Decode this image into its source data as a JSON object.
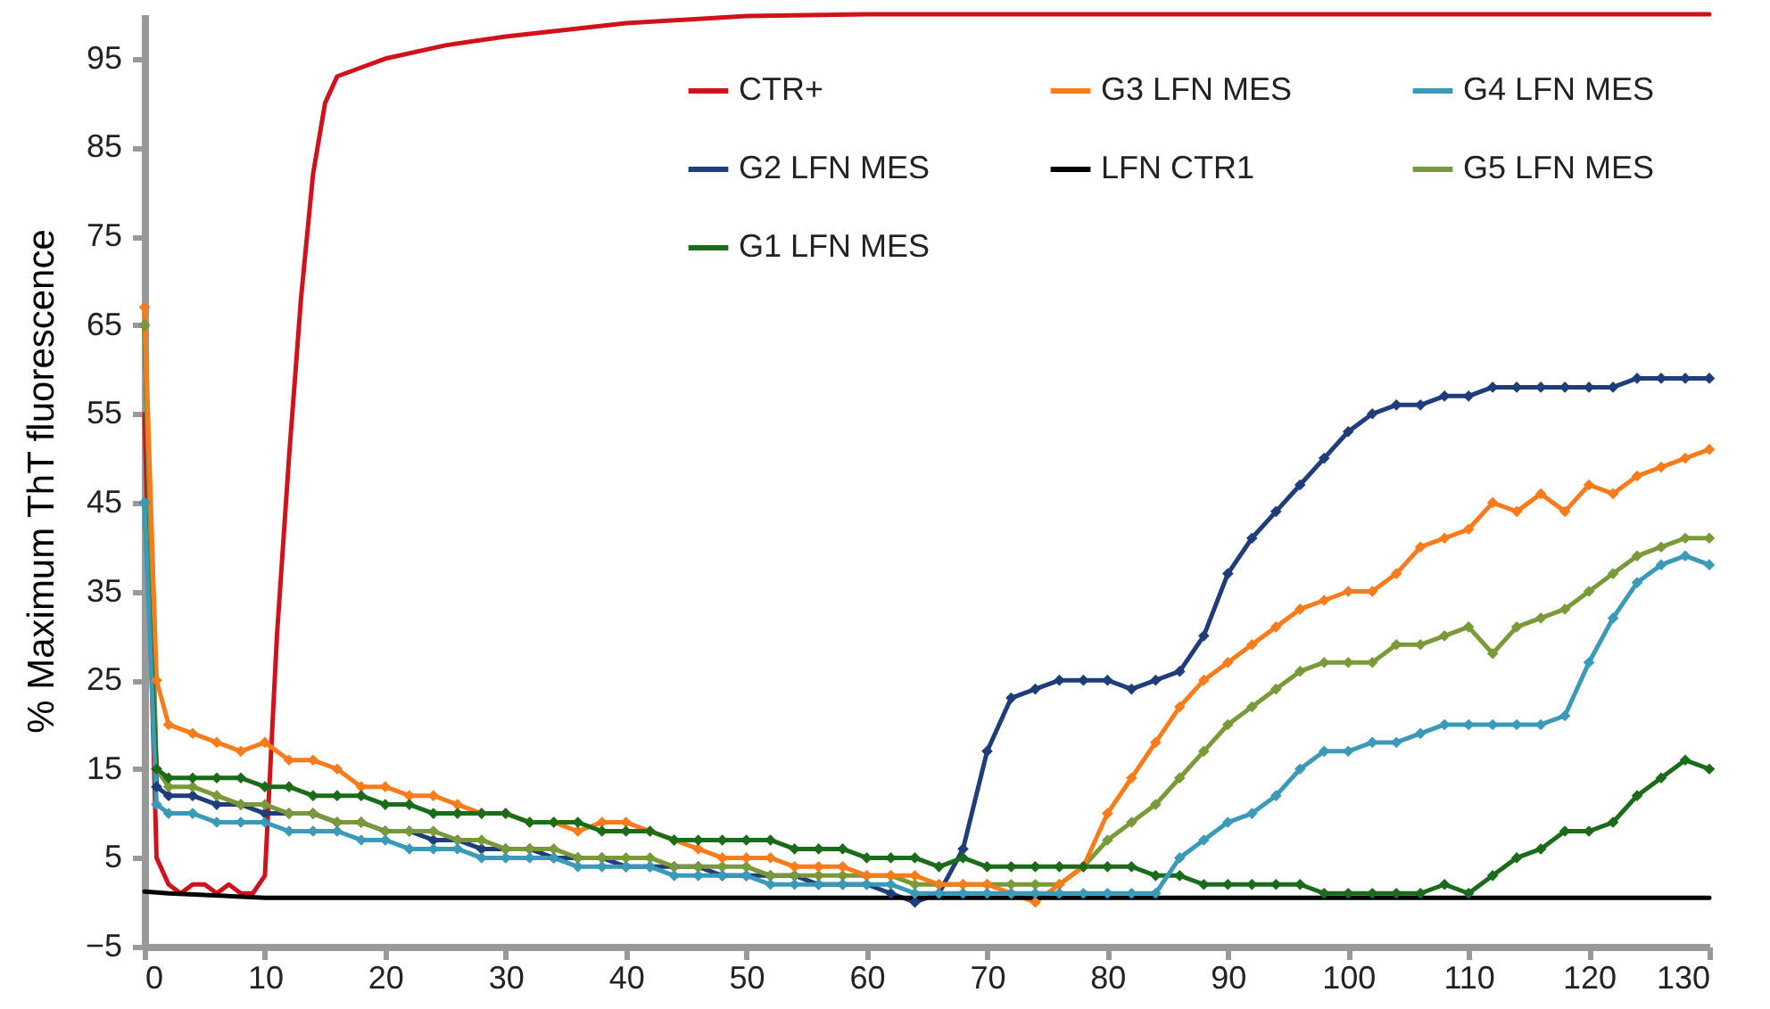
{
  "chart_data": {
    "type": "line",
    "ylabel": "% Maximum ThT fluorescence",
    "xlim": [
      0,
      130
    ],
    "xticks": [
      0,
      10,
      20,
      30,
      40,
      50,
      60,
      70,
      80,
      90,
      100,
      110,
      120,
      130
    ],
    "ylim": [
      -5,
      100
    ],
    "yticks": [
      -5,
      5,
      15,
      25,
      35,
      45,
      55,
      65,
      75,
      85,
      95
    ],
    "grid": false,
    "legend": "top right",
    "x": [
      0,
      1,
      2,
      4,
      6,
      8,
      10,
      12,
      14,
      16,
      18,
      20,
      22,
      24,
      26,
      28,
      30,
      32,
      34,
      36,
      38,
      40,
      42,
      44,
      46,
      48,
      50,
      52,
      54,
      56,
      58,
      60,
      62,
      64,
      66,
      68,
      70,
      72,
      74,
      76,
      78,
      80,
      82,
      84,
      86,
      88,
      90,
      92,
      94,
      96,
      98,
      100,
      102,
      104,
      106,
      108,
      110,
      112,
      114,
      116,
      118,
      120,
      122,
      124,
      126,
      128,
      130
    ],
    "series": [
      {
        "name": "CTR+",
        "color": "#d0121b",
        "marker": "none",
        "x": [
          0,
          1,
          2,
          3,
          4,
          5,
          6,
          7,
          8,
          9,
          10,
          11,
          12,
          13,
          14,
          15,
          16,
          18,
          20,
          25,
          30,
          40,
          50,
          60,
          130
        ],
        "values": [
          55,
          5,
          2,
          1,
          2,
          2,
          1,
          2,
          1,
          1,
          3,
          30,
          50,
          68,
          82,
          90,
          93,
          94,
          95,
          96.5,
          97.5,
          99,
          99.8,
          100,
          100
        ]
      },
      {
        "name": "G2 LFN MES",
        "color": "#1f3d7a",
        "marker": "diamond",
        "values": [
          65,
          13,
          12,
          12,
          11,
          11,
          10,
          10,
          10,
          9,
          9,
          8,
          8,
          7,
          7,
          6,
          6,
          6,
          5,
          5,
          5,
          4,
          4,
          4,
          4,
          3,
          3,
          3,
          3,
          2,
          2,
          2,
          1,
          0,
          1,
          6,
          17,
          23,
          24,
          25,
          25,
          25,
          24,
          25,
          26,
          30,
          37,
          41,
          44,
          47,
          50,
          53,
          55,
          56,
          56,
          57,
          57,
          58,
          58,
          58,
          58,
          58,
          58,
          59,
          59,
          59,
          59
        ]
      },
      {
        "name": "G5 LFN MES",
        "color": "#7a9a3a",
        "marker": "diamond",
        "values": [
          65,
          15,
          13,
          13,
          12,
          11,
          11,
          10,
          10,
          9,
          9,
          8,
          8,
          8,
          7,
          7,
          6,
          6,
          6,
          5,
          5,
          5,
          5,
          4,
          4,
          4,
          4,
          3,
          3,
          3,
          3,
          3,
          3,
          2,
          2,
          2,
          2,
          2,
          2,
          2,
          4,
          7,
          9,
          11,
          14,
          17,
          20,
          22,
          24,
          26,
          27,
          27,
          27,
          29,
          29,
          30,
          31,
          28,
          31,
          32,
          33,
          35,
          37,
          39,
          40,
          41,
          41
        ]
      },
      {
        "name": "G3 LFN MES",
        "color": "#f97c1c",
        "marker": "diamond",
        "values": [
          67,
          25,
          20,
          19,
          18,
          17,
          18,
          16,
          16,
          15,
          13,
          13,
          12,
          12,
          11,
          10,
          10,
          9,
          9,
          8,
          9,
          9,
          8,
          7,
          6,
          5,
          5,
          5,
          4,
          4,
          4,
          3,
          3,
          3,
          2,
          2,
          2,
          1,
          0,
          2,
          4,
          10,
          14,
          18,
          22,
          25,
          27,
          29,
          31,
          33,
          34,
          35,
          35,
          37,
          40,
          41,
          42,
          45,
          44,
          46,
          44,
          47,
          46,
          48,
          49,
          50,
          51
        ]
      },
      {
        "name": "LFN CTR1",
        "color": "#000000",
        "marker": "none",
        "x": [
          0,
          2,
          10,
          20,
          40,
          60,
          80,
          100,
          120,
          130
        ],
        "values": [
          1.2,
          1,
          0.5,
          0.5,
          0.5,
          0.5,
          0.5,
          0.5,
          0.5,
          0.5
        ]
      },
      {
        "name": "G1 LFN MES",
        "color": "#1a6b1a",
        "marker": "diamond",
        "values": [
          45,
          15,
          14,
          14,
          14,
          14,
          13,
          13,
          12,
          12,
          12,
          11,
          11,
          10,
          10,
          10,
          10,
          9,
          9,
          9,
          8,
          8,
          8,
          7,
          7,
          7,
          7,
          7,
          6,
          6,
          6,
          5,
          5,
          5,
          4,
          5,
          4,
          4,
          4,
          4,
          4,
          4,
          4,
          3,
          3,
          2,
          2,
          2,
          2,
          2,
          1,
          1,
          1,
          1,
          1,
          2,
          1,
          3,
          5,
          6,
          8,
          8,
          9,
          12,
          14,
          16,
          15
        ]
      },
      {
        "name": "G4 LFN MES",
        "color": "#3a9ab8",
        "marker": "diamond",
        "values": [
          45,
          11,
          10,
          10,
          9,
          9,
          9,
          8,
          8,
          8,
          7,
          7,
          6,
          6,
          6,
          5,
          5,
          5,
          5,
          4,
          4,
          4,
          4,
          3,
          3,
          3,
          3,
          2,
          2,
          2,
          2,
          2,
          2,
          1,
          1,
          1,
          1,
          1,
          1,
          1,
          1,
          1,
          1,
          1,
          5,
          7,
          9,
          10,
          12,
          15,
          17,
          17,
          18,
          18,
          19,
          20,
          20,
          20,
          20,
          20,
          21,
          27,
          32,
          36,
          38,
          39,
          38
        ]
      }
    ]
  }
}
